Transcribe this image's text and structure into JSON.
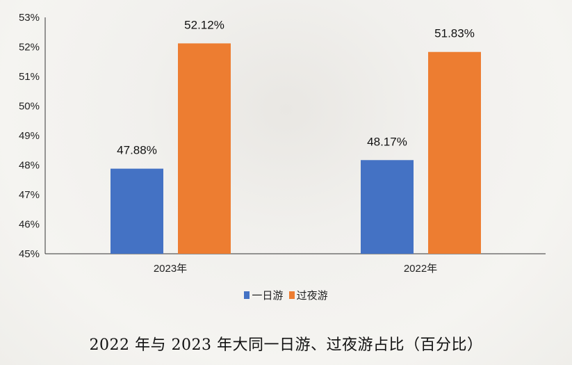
{
  "chart_data": {
    "type": "bar",
    "title": "2022 年与 2023 年大同一日游、过夜游占比（百分比）",
    "categories": [
      "2023年",
      "2022年"
    ],
    "series": [
      {
        "name": "一日游",
        "values": [
          47.88,
          48.17
        ],
        "labels": [
          "47.88%",
          "48.17%"
        ],
        "color": "#4472c4"
      },
      {
        "name": "过夜游",
        "values": [
          52.12,
          51.83
        ],
        "labels": [
          "52.12%",
          "51.83%"
        ],
        "color": "#ed7d31"
      }
    ],
    "ylim": [
      45,
      53
    ],
    "yticks": [
      "45%",
      "46%",
      "47%",
      "48%",
      "49%",
      "50%",
      "51%",
      "52%",
      "53%"
    ],
    "grid": false,
    "legend": "bottom"
  }
}
